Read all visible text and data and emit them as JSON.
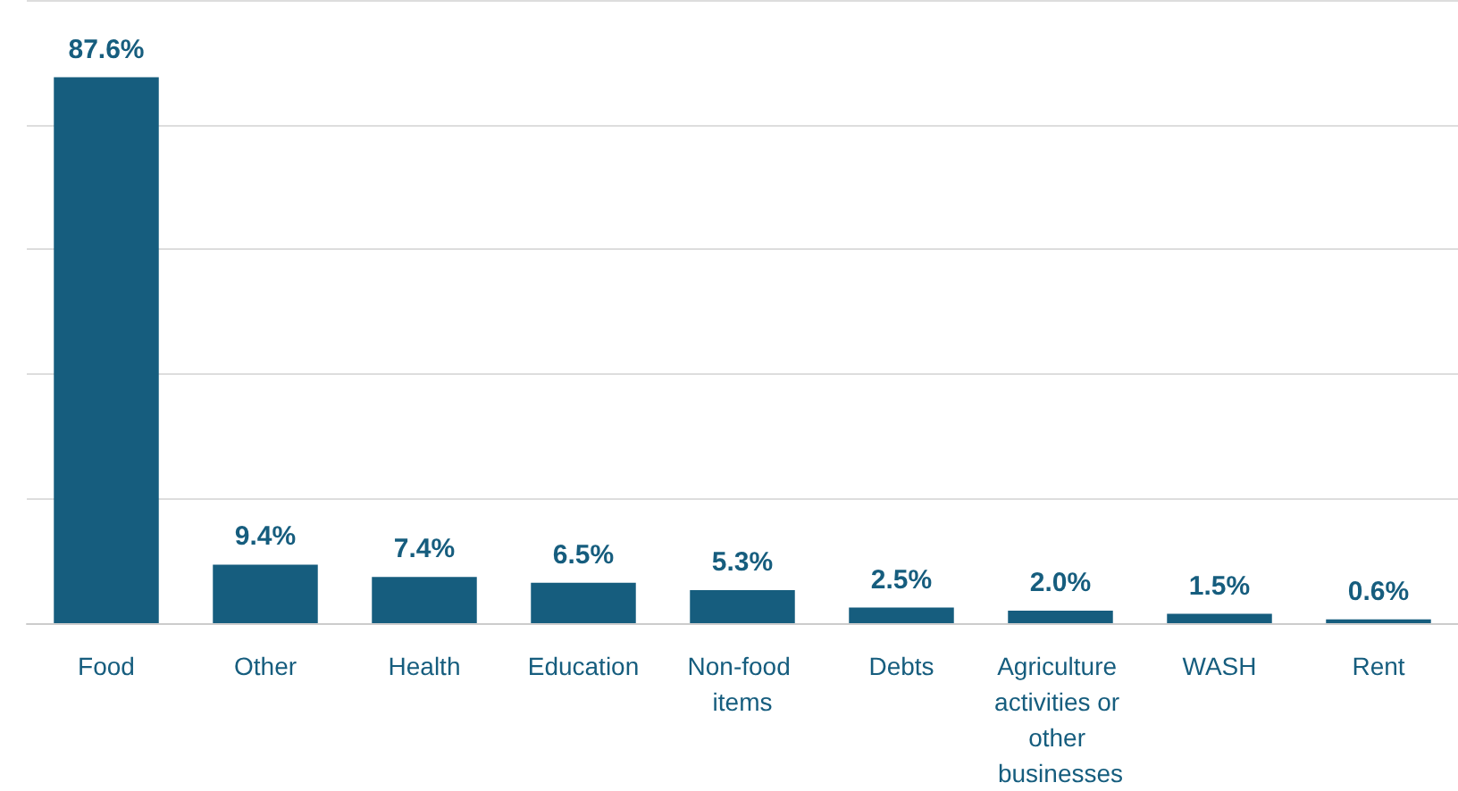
{
  "chart_data": {
    "type": "bar",
    "categories": [
      "Food",
      "Other",
      "Health",
      "Education",
      "Non-food items",
      "Debts",
      "Agriculture activities or other businesses",
      "WASH",
      "Rent"
    ],
    "values": [
      87.6,
      9.4,
      7.4,
      6.5,
      5.3,
      2.5,
      2.0,
      1.5,
      0.6
    ],
    "value_labels": [
      "87.6%",
      "9.4%",
      "7.4%",
      "6.5%",
      "5.3%",
      "2.5%",
      "2.0%",
      "1.5%",
      "0.6%"
    ],
    "color": "#165d7e",
    "ylim": [
      0,
      100
    ],
    "yticks": [
      {
        "value": 0,
        "label": null
      },
      {
        "value": 20,
        "label": null
      },
      {
        "value": 40,
        "label": null
      },
      {
        "value": 60,
        "label": null
      },
      {
        "value": 80,
        "label": null
      },
      {
        "value": 100,
        "label": null
      }
    ],
    "grid": "y",
    "tick_labels": "x"
  }
}
